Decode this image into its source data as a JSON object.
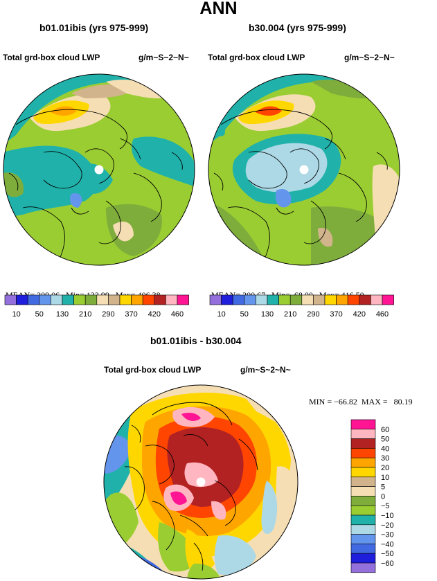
{
  "figure": {
    "title": "ANN",
    "panels": [
      {
        "id": "b01",
        "title": "b01.01ibis (yrs 975-999)",
        "variable": "Total grd-box cloud LWP",
        "units": "g/m~S~2~N~",
        "stats": {
          "mean": "209.06",
          "min": "122.99",
          "max": "406.38"
        },
        "stats_labels": {
          "mean": "MEAN=",
          "min": "Min=",
          "max": "Max="
        }
      },
      {
        "id": "b30",
        "title": "b30.004 (yrs 975-999)",
        "variable": "Total grd-box cloud LWP",
        "units": "g/m~S~2~N~",
        "stats": {
          "mean": "200.67",
          "min": "68.00",
          "max": "416.50"
        },
        "stats_labels": {
          "mean": "MEAN=",
          "min": "Min=",
          "max": "Max="
        }
      }
    ],
    "abs_colorbar": {
      "labels": [
        "10",
        "50",
        "130",
        "210",
        "290",
        "370",
        "420",
        "460"
      ],
      "colors": [
        "#9370db",
        "#1e1edc",
        "#4169e1",
        "#6495ed",
        "#add8e6",
        "#20b2aa",
        "#9acd32",
        "#7fad3c",
        "#f5deb3",
        "#d2b48c",
        "#ffd700",
        "#ffa500",
        "#ff4500",
        "#b22222",
        "#ffb6c1",
        "#ff1493"
      ]
    },
    "diff_panel": {
      "title": "b01.01ibis - b30.004",
      "variable": "Total grd-box cloud LWP",
      "units": "g/m~S~2~N~",
      "stats_text": "MIN = −66.82  MAX =   80.19",
      "colorbar_labels": [
        "60",
        "50",
        "40",
        "30",
        "20",
        "10",
        "5",
        "0",
        "−5",
        "−10",
        "−20",
        "−30",
        "−40",
        "−50",
        "−60"
      ],
      "colorbar_colors": [
        "#ff1493",
        "#ffb6c1",
        "#b22222",
        "#ff4500",
        "#ffa500",
        "#ffd700",
        "#d2b48c",
        "#f5deb3",
        "#7fad3c",
        "#9acd32",
        "#20b2aa",
        "#add8e6",
        "#6495ed",
        "#4169e1",
        "#1e1edc",
        "#9370db"
      ]
    }
  }
}
